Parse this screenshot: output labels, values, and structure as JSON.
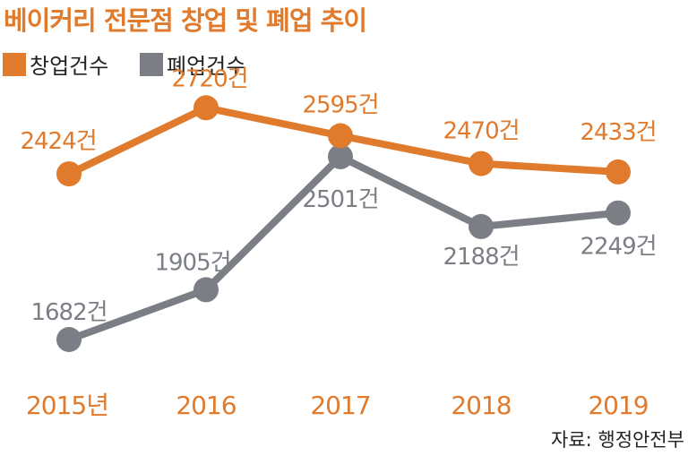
{
  "chart_data": {
    "type": "line",
    "title": "베이커리 전문점 창업 및 폐업 추이",
    "categories": [
      "2015년",
      "2016",
      "2017",
      "2018",
      "2019"
    ],
    "unit_suffix": "건",
    "series": [
      {
        "name": "창업건수",
        "color": "#E07A2C",
        "values": [
          2424,
          2720,
          2595,
          2470,
          2433
        ]
      },
      {
        "name": "폐업건수",
        "color": "#7B7F85",
        "values": [
          1682,
          1905,
          2501,
          2188,
          2249
        ]
      }
    ],
    "legend": "top-left",
    "grid": false,
    "source": "자료: 행정안전부"
  }
}
